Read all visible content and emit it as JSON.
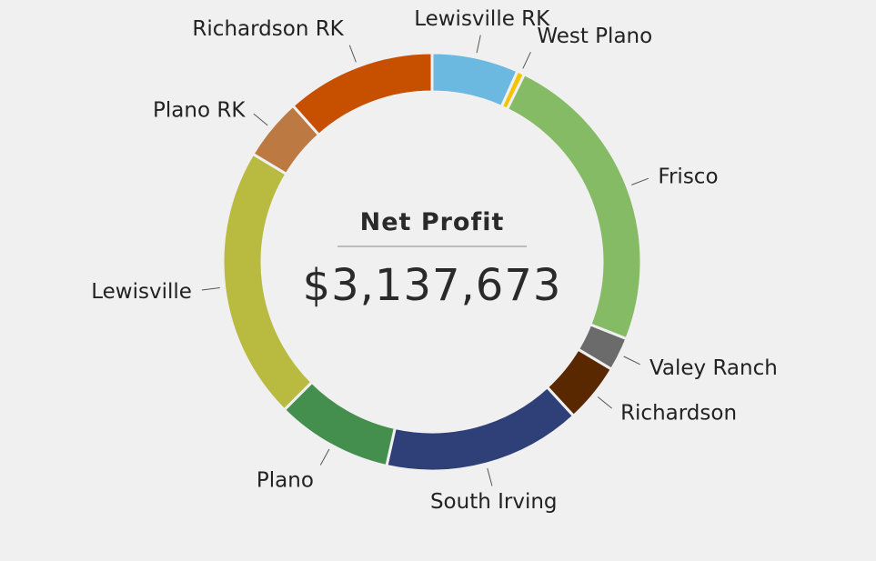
{
  "chart_data": {
    "type": "pie",
    "variant": "donut",
    "center": {
      "title": "Net Profit",
      "value": "$3,137,673"
    },
    "start": "top",
    "direction": "clockwise",
    "slices": [
      {
        "label": "Lewisville RK",
        "value": 7.0,
        "color": "#6bb8e0",
        "label_side": "top"
      },
      {
        "label": "West Plano",
        "value": 0.6,
        "color": "#f5c400",
        "label_side": "right"
      },
      {
        "label": "Frisco",
        "value": 24.8,
        "color": "#86bb66",
        "label_side": "right"
      },
      {
        "label": "Valey Ranch",
        "value": 2.7,
        "color": "#6b6b6b",
        "label_side": "right"
      },
      {
        "label": "Richardson",
        "value": 4.8,
        "color": "#5a2800",
        "label_side": "right"
      },
      {
        "label": "South Irving",
        "value": 16.0,
        "color": "#2f3f78",
        "label_side": "bottom-right"
      },
      {
        "label": "Plano",
        "value": 9.4,
        "color": "#448f4d",
        "label_side": "bottom-left"
      },
      {
        "label": "Lewisville",
        "value": 22.1,
        "color": "#b9ba40",
        "label_side": "left"
      },
      {
        "label": "Plano RK",
        "value": 5.0,
        "color": "#bd7942",
        "label_side": "left"
      },
      {
        "label": "Richardson RK",
        "value": 12.1,
        "color": "#c75000",
        "label_side": "top-left"
      }
    ],
    "legend": "none",
    "grid": false
  }
}
